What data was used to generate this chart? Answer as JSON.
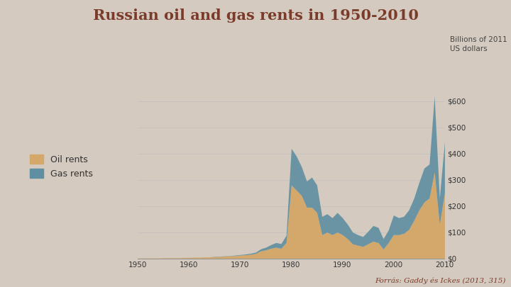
{
  "title": "Russian oil and gas rents in 1950-2010",
  "subtitle": "Billions of 2011\nUS dollars",
  "source": "Forrás: Gaddy és Ickes (2013, 315)",
  "title_color": "#7B3B2A",
  "source_color": "#7B3B2A",
  "background_color": "#D4CABF",
  "plot_bg": "#D4CABF",
  "oil_color": "#D4A86A",
  "gas_color": "#5F8FA0",
  "legend_oil": "Oil rents",
  "legend_gas": "Gas rents",
  "years": [
    1950,
    1951,
    1952,
    1953,
    1954,
    1955,
    1956,
    1957,
    1958,
    1959,
    1960,
    1961,
    1962,
    1963,
    1964,
    1965,
    1966,
    1967,
    1968,
    1969,
    1970,
    1971,
    1972,
    1973,
    1974,
    1975,
    1976,
    1977,
    1978,
    1979,
    1980,
    1981,
    1982,
    1983,
    1984,
    1985,
    1986,
    1987,
    1988,
    1989,
    1990,
    1991,
    1992,
    1993,
    1994,
    1995,
    1996,
    1997,
    1998,
    1999,
    2000,
    2001,
    2002,
    2003,
    2004,
    2005,
    2006,
    2007,
    2008,
    2009,
    2010
  ],
  "oil_rents": [
    1,
    1,
    1,
    1,
    1,
    2,
    2,
    2,
    2,
    3,
    3,
    4,
    4,
    5,
    5,
    6,
    7,
    8,
    9,
    10,
    12,
    13,
    15,
    18,
    28,
    32,
    38,
    42,
    38,
    60,
    280,
    260,
    240,
    195,
    195,
    175,
    90,
    100,
    90,
    100,
    90,
    75,
    55,
    50,
    45,
    55,
    65,
    60,
    35,
    60,
    90,
    90,
    95,
    110,
    145,
    185,
    215,
    230,
    330,
    130,
    250
  ],
  "gas_rents": [
    0,
    0,
    0,
    0,
    0,
    0,
    0,
    0,
    0,
    0,
    0,
    0,
    0,
    0,
    0,
    1,
    1,
    1,
    1,
    2,
    2,
    3,
    4,
    5,
    8,
    10,
    14,
    18,
    18,
    28,
    140,
    130,
    110,
    100,
    115,
    105,
    70,
    70,
    65,
    75,
    65,
    55,
    45,
    40,
    38,
    48,
    60,
    58,
    40,
    48,
    75,
    65,
    65,
    75,
    85,
    105,
    130,
    130,
    290,
    100,
    195
  ],
  "ylim": [
    0,
    680
  ],
  "yticks": [
    0,
    100,
    200,
    300,
    400,
    500,
    600
  ],
  "xlim": [
    1950,
    2010
  ]
}
